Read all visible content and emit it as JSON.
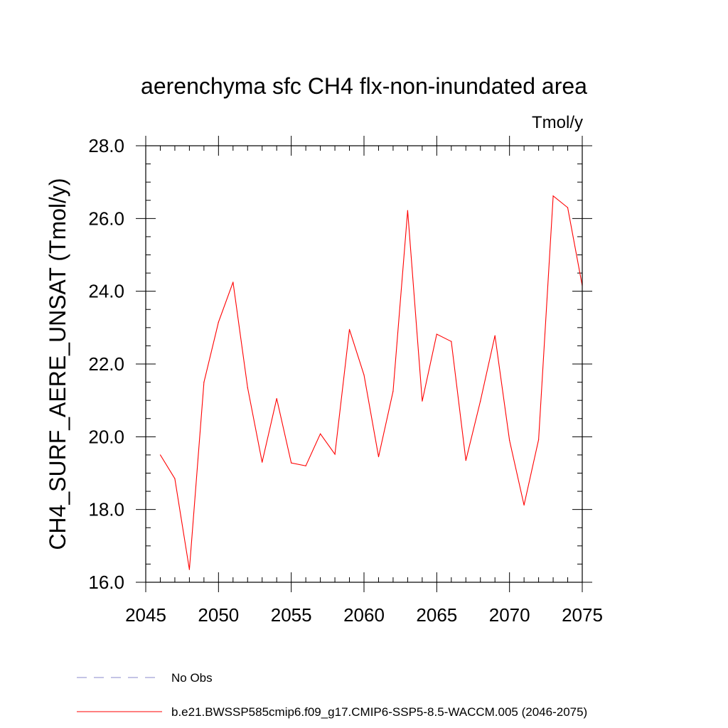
{
  "chart_data": {
    "type": "line",
    "title": "aerenchyma sfc CH4 flx-non-inundated area",
    "units_label": "Tmol/y",
    "ylabel": "CH4_SURF_AERE_UNSAT  (Tmol/y)",
    "xlabel": "",
    "xlim": [
      2045,
      2075
    ],
    "ylim": [
      16.0,
      28.0
    ],
    "x_ticks": [
      2045,
      2050,
      2055,
      2060,
      2065,
      2070,
      2075
    ],
    "x_tick_labels": [
      "2045",
      "2050",
      "2055",
      "2060",
      "2065",
      "2070",
      "2075"
    ],
    "y_ticks": [
      16.0,
      18.0,
      20.0,
      22.0,
      24.0,
      26.0,
      28.0
    ],
    "y_tick_labels": [
      "16.0",
      "18.0",
      "20.0",
      "22.0",
      "24.0",
      "26.0",
      "28.0"
    ],
    "x_minor_step": 1,
    "y_minor_step": 0.5,
    "series": [
      {
        "name": "b.e21.BWSSP585cmip6.f09_g17.CMIP6-SSP5-8.5-WACCM.005 (2046-2075)",
        "color": "#ff0000",
        "x": [
          2046,
          2047,
          2048,
          2049,
          2050,
          2051,
          2052,
          2053,
          2054,
          2055,
          2056,
          2057,
          2058,
          2059,
          2060,
          2061,
          2062,
          2063,
          2064,
          2065,
          2066,
          2067,
          2068,
          2069,
          2070,
          2071,
          2072,
          2073,
          2074,
          2075
        ],
        "values": [
          19.5,
          18.85,
          16.35,
          21.5,
          23.15,
          24.25,
          21.35,
          19.3,
          21.05,
          19.28,
          19.2,
          20.08,
          19.52,
          22.95,
          21.7,
          19.45,
          21.25,
          26.22,
          20.98,
          22.82,
          22.62,
          19.35,
          20.98,
          22.78,
          19.9,
          18.12,
          19.92,
          26.62,
          26.3,
          24.15
        ]
      }
    ],
    "legend": [
      {
        "label": "No Obs",
        "style": "dashed",
        "color": "#8888cc"
      },
      {
        "label": "b.e21.BWSSP585cmip6.f09_g17.CMIP6-SSP5-8.5-WACCM.005 (2046-2075)",
        "style": "solid",
        "color": "#ff0000"
      }
    ],
    "legend_position": "bottom",
    "grid": false
  }
}
